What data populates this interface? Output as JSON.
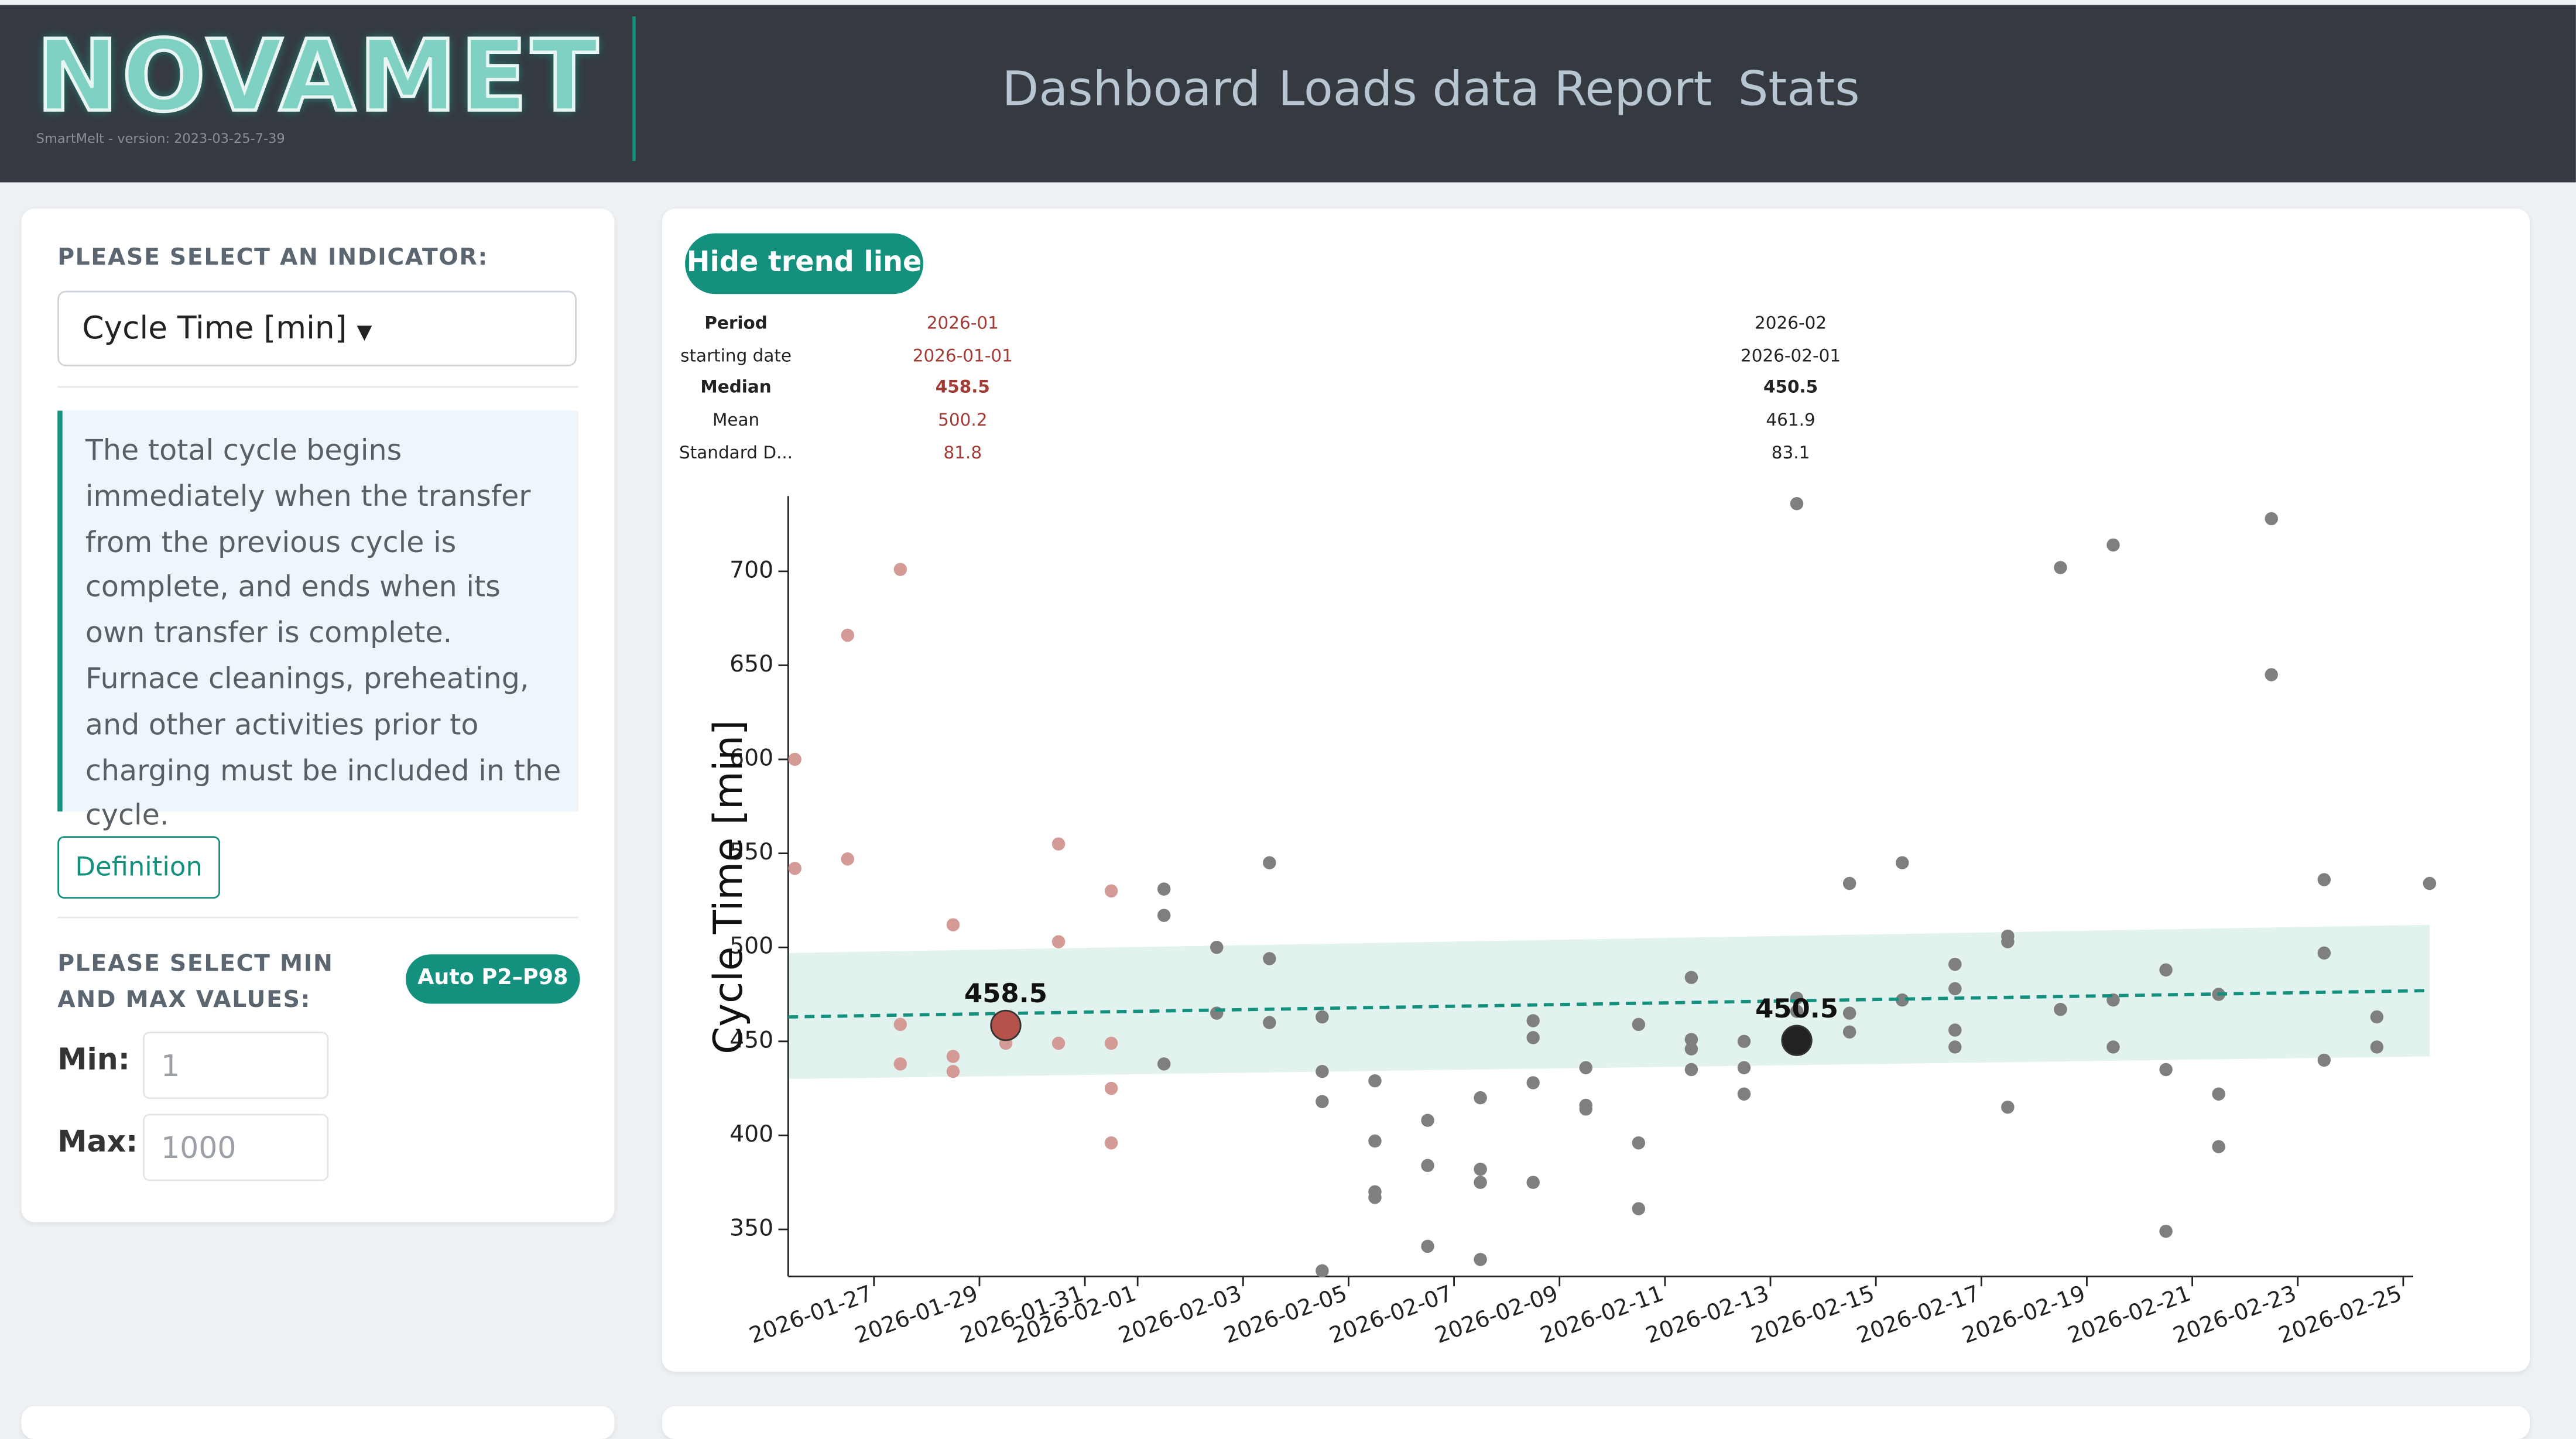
{
  "header": {
    "logo": "NOVAMET",
    "version": "SmartMelt - version: 2023-03-25-7-39",
    "nav": [
      "Dashboard",
      "Loads data",
      "Report",
      "Stats"
    ]
  },
  "sidebar": {
    "indicator_label": "PLEASE SELECT AN INDICATOR:",
    "indicator": "Cycle Time [min]",
    "description": "The total cycle begins immediately when the transfer from the previous cycle is complete, and ends when its own transfer is complete. Furnace cleanings, preheating, and other activities prior to charging must be included in the cycle.",
    "definition_button": "Definition",
    "minmax_label": "PLEASE SELECT MIN AND MAX VALUES:",
    "auto_button": "Auto P2–P98",
    "min_label": "Min:",
    "min_value": "1",
    "max_label": "Max:",
    "max_value": "1000"
  },
  "trend_button": "Hide trend line",
  "stats_table": {
    "row_labels": [
      "Period",
      "starting date",
      "Median",
      "Mean",
      "Standard D..."
    ],
    "columns": [
      [
        "2026-01",
        "2026-01-01",
        "458.5",
        "500.2",
        "81.8"
      ],
      [
        "2026-02",
        "2026-02-01",
        "450.5",
        "461.9",
        "83.1"
      ]
    ]
  },
  "chart_data": {
    "type": "scatter",
    "y_label": "Cycle Time [min]",
    "xlim": [
      "2026-01-25",
      "2026-02-26"
    ],
    "xticks": [
      "2026-01-27",
      "2026-01-29",
      "2026-01-31",
      "2026-02-01",
      "2026-02-03",
      "2026-02-05",
      "2026-02-07",
      "2026-02-09",
      "2026-02-11",
      "2026-02-13",
      "2026-02-15",
      "2026-02-17",
      "2026-02-19",
      "2026-02-21",
      "2026-02-23",
      "2026-02-25"
    ],
    "ylim": [
      325,
      740
    ],
    "yticks": [
      350,
      400,
      450,
      500,
      550,
      600,
      650,
      700
    ],
    "series": [
      {
        "name": "2026-01",
        "color": "#d49a95",
        "median": 458.5,
        "median_x": "2026-01-29",
        "median_color": "#b5524c",
        "x": [
          "2026-01-25",
          "2026-01-25",
          "2026-01-26",
          "2026-01-26",
          "2026-01-27",
          "2026-01-27",
          "2026-01-27",
          "2026-01-28",
          "2026-01-28",
          "2026-01-28",
          "2026-01-29",
          "2026-01-29",
          "2026-01-30",
          "2026-01-30",
          "2026-01-30",
          "2026-01-31",
          "2026-01-31",
          "2026-01-31",
          "2026-01-31"
        ],
        "values": [
          542,
          600,
          666,
          547,
          701,
          459,
          438,
          512,
          434,
          442,
          449,
          459,
          503,
          555,
          449,
          425,
          396,
          530,
          449
        ]
      },
      {
        "name": "2026-02",
        "color": "#7f7f7f",
        "median": 450.5,
        "median_x": "2026-02-13",
        "median_color": "#222222",
        "x": [
          "2026-02-01",
          "2026-02-01",
          "2026-02-01",
          "2026-02-02",
          "2026-02-02",
          "2026-02-03",
          "2026-02-03",
          "2026-02-03",
          "2026-02-04",
          "2026-02-04",
          "2026-02-04",
          "2026-02-04",
          "2026-02-05",
          "2026-02-05",
          "2026-02-05",
          "2026-02-05",
          "2026-02-06",
          "2026-02-06",
          "2026-02-06",
          "2026-02-07",
          "2026-02-07",
          "2026-02-07",
          "2026-02-07",
          "2026-02-08",
          "2026-02-08",
          "2026-02-08",
          "2026-02-08",
          "2026-02-09",
          "2026-02-09",
          "2026-02-09",
          "2026-02-10",
          "2026-02-10",
          "2026-02-10",
          "2026-02-11",
          "2026-02-11",
          "2026-02-11",
          "2026-02-11",
          "2026-02-12",
          "2026-02-12",
          "2026-02-12",
          "2026-02-13",
          "2026-02-13",
          "2026-02-13",
          "2026-02-14",
          "2026-02-14",
          "2026-02-14",
          "2026-02-15",
          "2026-02-15",
          "2026-02-16",
          "2026-02-16",
          "2026-02-16",
          "2026-02-16",
          "2026-02-17",
          "2026-02-17",
          "2026-02-17",
          "2026-02-18",
          "2026-02-18",
          "2026-02-19",
          "2026-02-19",
          "2026-02-19",
          "2026-02-20",
          "2026-02-20",
          "2026-02-20",
          "2026-02-21",
          "2026-02-21",
          "2026-02-21",
          "2026-02-22",
          "2026-02-22",
          "2026-02-23",
          "2026-02-23",
          "2026-02-23",
          "2026-02-24",
          "2026-02-24",
          "2026-02-25"
        ],
        "values": [
          438,
          517,
          531,
          465,
          500,
          460,
          545,
          494,
          418,
          463,
          434,
          328,
          370,
          397,
          367,
          429,
          408,
          384,
          341,
          334,
          375,
          420,
          382,
          452,
          428,
          375,
          461,
          436,
          414,
          416,
          459,
          396,
          361,
          484,
          435,
          451,
          446,
          422,
          436,
          450,
          473,
          736,
          466,
          455,
          534,
          465,
          472,
          545,
          456,
          491,
          447,
          478,
          415,
          503,
          506,
          702,
          467,
          472,
          714,
          447,
          488,
          435,
          349,
          394,
          422,
          475,
          728,
          645,
          536,
          497,
          440,
          463,
          447,
          534
        ]
      }
    ],
    "trend": {
      "color": "#13917e",
      "x": [
        "2026-01-25",
        "2026-02-25"
      ],
      "values": [
        463,
        477
      ],
      "band_low": [
        430,
        442
      ],
      "band_high": [
        497,
        512
      ]
    }
  }
}
